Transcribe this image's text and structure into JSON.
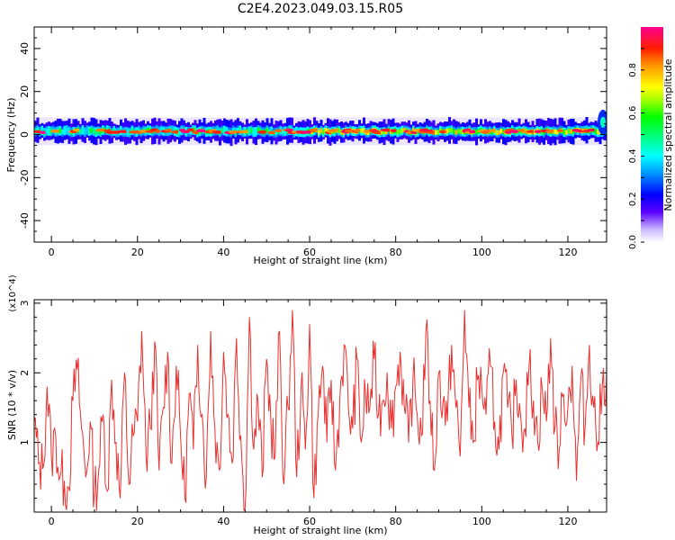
{
  "title": "C2E4.2023.049.03.15.R05",
  "chart_data": [
    {
      "type": "heatmap",
      "xlabel": "Height of straight line (km)",
      "ylabel": "Frequency (Hz)",
      "xlim": [
        -4,
        129
      ],
      "ylim": [
        -50,
        50
      ],
      "xticks": [
        0,
        20,
        40,
        60,
        80,
        100,
        120
      ],
      "yticks": [
        40,
        20,
        0,
        -20,
        -40
      ],
      "band_center_hz": 1.5,
      "band_halfwidth_hz": 2.5,
      "colorbar": {
        "label": "Normalized spectral amplitude",
        "range": [
          0.0,
          1.0
        ],
        "ticks": [
          0.0,
          0.2,
          0.4,
          0.6,
          0.8
        ]
      }
    },
    {
      "type": "line",
      "xlabel": "Height of straight line (km)",
      "ylabel": "SNR (10 * v/v)",
      "yscale_label": "(x10^4)",
      "xlim": [
        -4,
        129
      ],
      "ylim": [
        0,
        3.05
      ],
      "xticks": [
        0,
        20,
        40,
        60,
        80,
        100,
        120
      ],
      "yticks": [
        1,
        2,
        3
      ],
      "color": "#e8302e",
      "series": [
        {
          "x": [
            -4,
            -3,
            -2,
            -1,
            0,
            1,
            2,
            3,
            4,
            5,
            6,
            7,
            8,
            9,
            10,
            11,
            12,
            13,
            14,
            15,
            16,
            17,
            18,
            19,
            20,
            21,
            22,
            23,
            24,
            25,
            26,
            27,
            28,
            29,
            30,
            31,
            32,
            33,
            34,
            35,
            36,
            37,
            38,
            39,
            40,
            41,
            42,
            43,
            44,
            45,
            46,
            47,
            48,
            49,
            50,
            51,
            52,
            53,
            54,
            55,
            56,
            57,
            58,
            59,
            60,
            61,
            62,
            63,
            64,
            65,
            66,
            67,
            68,
            69,
            70,
            71,
            72,
            73,
            74,
            75,
            76,
            77,
            78,
            79,
            80,
            81,
            82,
            83,
            84,
            85,
            86,
            87,
            88,
            89,
            90,
            91,
            92,
            93,
            94,
            95,
            96,
            97,
            98,
            99,
            100,
            101,
            102,
            103,
            104,
            105,
            106,
            107,
            108,
            109,
            110,
            111,
            112,
            113,
            114,
            115,
            116,
            117,
            118,
            119,
            120,
            121,
            122,
            123,
            124,
            125,
            126,
            127,
            128,
            129
          ],
          "y": [
            1.3,
            0.7,
            0.62,
            1.8,
            0.8,
            1.1,
            0.5,
            0.45,
            0.35,
            1.6,
            2.05,
            1.2,
            0.5,
            1.3,
            0.25,
            0.6,
            1.4,
            0.3,
            1.9,
            1.0,
            0.2,
            2.0,
            0.4,
            1.1,
            1.3,
            2.6,
            0.8,
            1.2,
            2.45,
            0.6,
            1.5,
            2.3,
            0.7,
            2.1,
            1.1,
            0.2,
            1.7,
            0.9,
            2.4,
            1.4,
            0.5,
            2.6,
            1.2,
            0.6,
            2.3,
            1.4,
            0.7,
            2.5,
            1.1,
            0.05,
            2.8,
            0.9,
            1.6,
            0.5,
            2.2,
            1.3,
            0.8,
            2.6,
            0.4,
            1.5,
            2.9,
            0.5,
            1.8,
            0.9,
            2.7,
            0.2,
            1.4,
            2.1,
            1.0,
            1.9,
            0.6,
            1.6,
            2.4,
            1.5,
            1.2,
            2.2,
            1.0,
            1.7,
            1.5,
            2.2,
            1.4,
            1.6,
            2.0,
            1.2,
            1.8,
            2.3,
            1.5,
            1.0,
            1.9,
            1.4,
            1.1,
            2.6,
            1.6,
            0.6,
            2.0,
            1.6,
            1.3,
            2.4,
            1.5,
            0.8,
            2.9,
            1.5,
            1.0,
            1.9,
            1.8,
            1.4,
            2.1,
            1.3,
            0.9,
            2.0,
            1.5,
            1.1,
            1.9,
            1.4,
            1.2,
            2.1,
            1.6,
            1.0,
            1.8,
            1.3,
            2.5,
            1.2,
            0.9,
            1.7,
            1.5,
            2.1,
            0.45,
            1.9,
            1.2,
            2.4,
            1.5,
            1.0,
            1.8,
            2.0
          ]
        }
      ]
    }
  ]
}
